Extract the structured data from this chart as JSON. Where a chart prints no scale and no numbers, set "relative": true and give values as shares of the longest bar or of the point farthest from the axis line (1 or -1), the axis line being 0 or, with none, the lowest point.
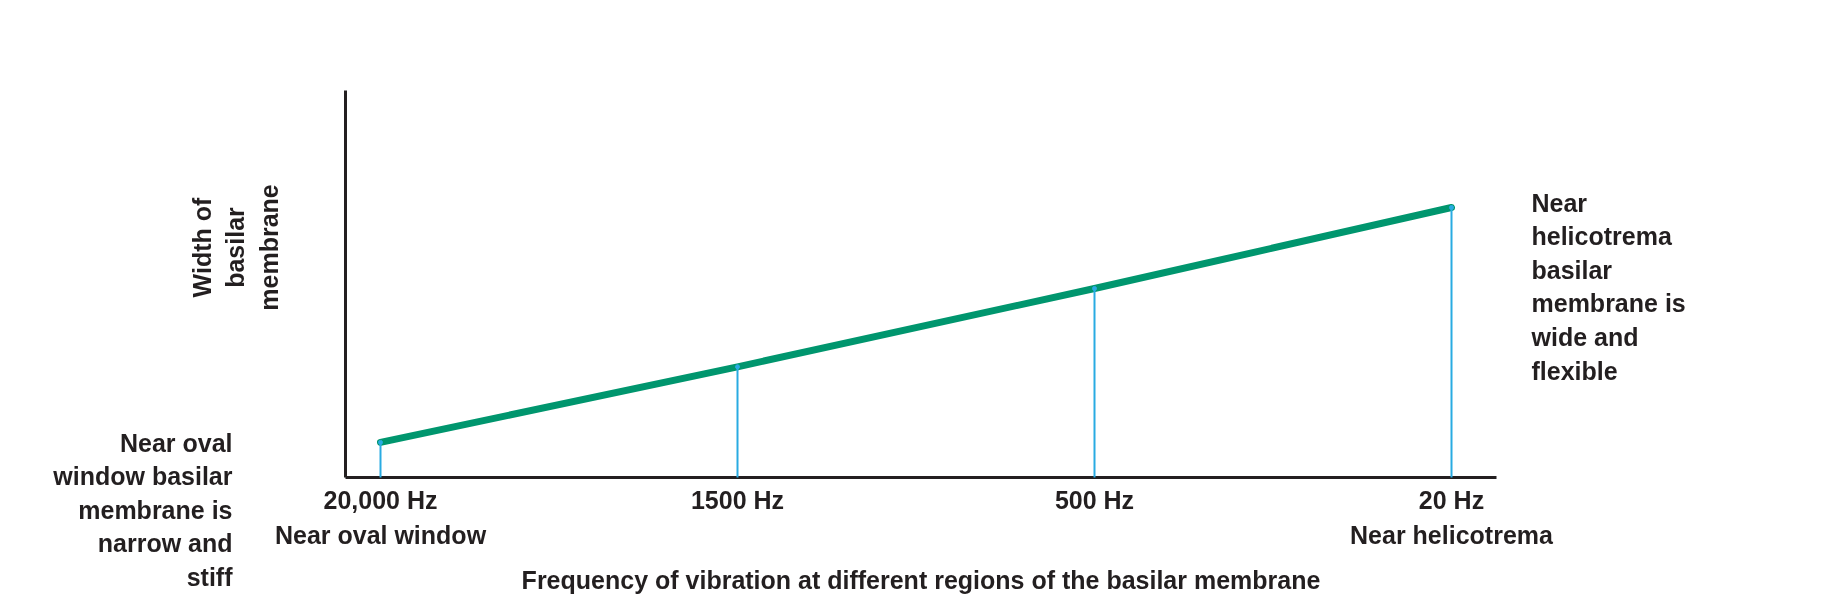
{
  "chart_data": {
    "type": "line",
    "relative": true,
    "categories": [
      "20,000 Hz",
      "1500 Hz",
      "500 Hz",
      "20 Hz"
    ],
    "series": [
      {
        "color": "#00966e",
        "values": [
          0.13,
          0.41,
          0.7,
          1.0
        ]
      },
      {
        "type": "lollipop",
        "color": "#29abe2",
        "values": [
          0.13,
          0.41,
          0.7,
          1.0
        ]
      }
    ],
    "xlabel": "Frequency of vibration at different regions of the basilar membrane",
    "ylabel": "Width of\nbasilar\nmembrane",
    "annotations": [
      "Near oval window",
      "Near helicotrema",
      "Near oval\nwindow basilar\nmembrane is\nnarrow and\nstiff",
      "Near\nhelicotrema\nbasilar\nmembrane is\nwide and\nflexible"
    ],
    "marker": "none",
    "line_style": "solid"
  }
}
